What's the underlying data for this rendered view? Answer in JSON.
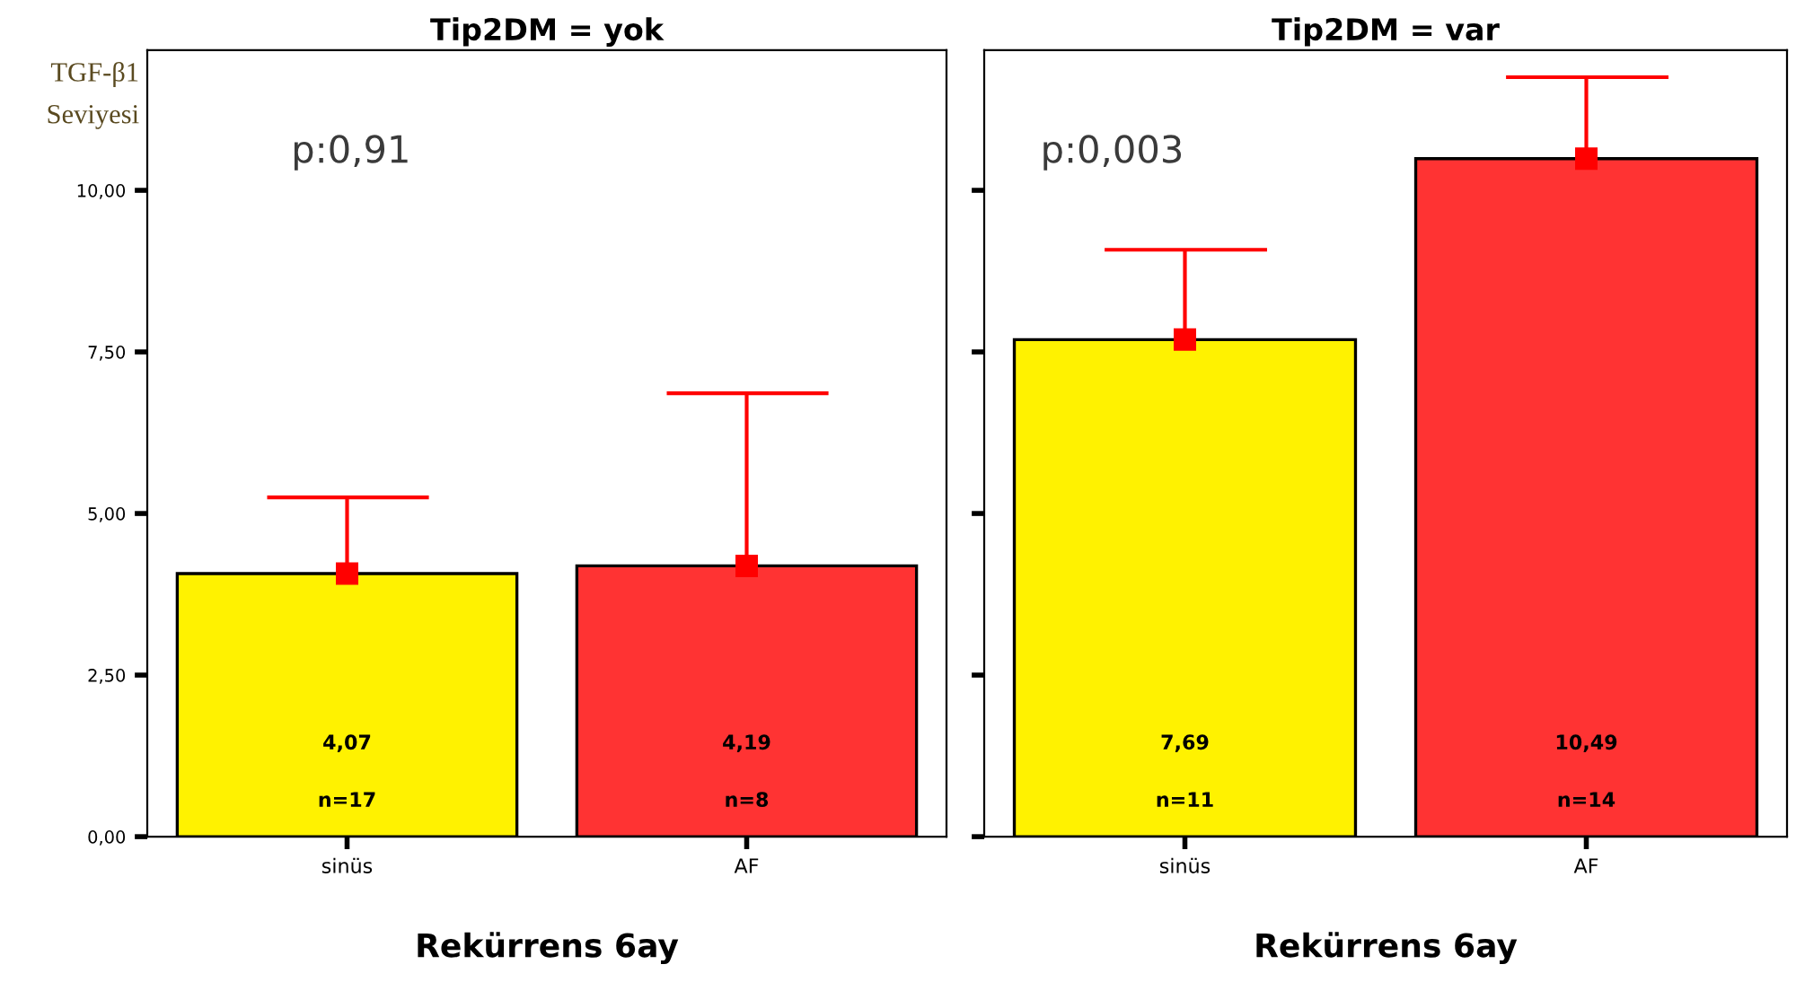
{
  "chart_data": [
    {
      "type": "bar",
      "title": "Tip2DM = yok",
      "xlabel": "Rekürrens 6ay",
      "ylabel": "TGF-β1\nSeviyesi",
      "categories": [
        "sinüs",
        "AF"
      ],
      "series": [
        {
          "values": [
            4.07,
            4.19
          ],
          "colors": [
            "#fff200",
            "#ff3333"
          ],
          "value_labels": [
            "4,07",
            "4,19"
          ]
        },
        {
          "type": "scatter",
          "x": [
            "sinüs",
            "AF"
          ],
          "values": [
            4.07,
            4.19
          ],
          "color": "#ff0000",
          "marker": "square",
          "errors": [
            [
              4.07,
              5.25
            ],
            [
              4.19,
              6.86
            ]
          ]
        }
      ],
      "ylim": [
        0,
        12.17
      ],
      "yticks": [
        {
          "value": 0,
          "label": "0,00"
        },
        {
          "value": 2.5,
          "label": "2,50"
        },
        {
          "value": 5,
          "label": "5,00"
        },
        {
          "value": 7.5,
          "label": "7,50"
        },
        {
          "value": 10,
          "label": "10,00"
        }
      ],
      "annotations": [
        "p:0,91",
        "n=17",
        "n=8"
      ]
    },
    {
      "type": "bar",
      "title": "Tip2DM = var",
      "xlabel": "Rekürrens 6ay",
      "categories": [
        "sinüs",
        "AF"
      ],
      "series": [
        {
          "values": [
            7.69,
            10.49
          ],
          "colors": [
            "#fff200",
            "#ff3333"
          ],
          "value_labels": [
            "7,69",
            "10,49"
          ]
        },
        {
          "type": "scatter",
          "x": [
            "sinüs",
            "AF"
          ],
          "values": [
            7.69,
            10.49
          ],
          "color": "#ff0000",
          "marker": "square",
          "errors": [
            [
              7.69,
              9.08
            ],
            [
              10.49,
              11.75
            ]
          ]
        }
      ],
      "ylim": [
        0,
        12.17
      ],
      "yticks": [
        0,
        2.5,
        5,
        7.5,
        10
      ],
      "tick_labels": "x",
      "annotations": [
        "p:0,003",
        "n=11",
        "n=14"
      ]
    }
  ]
}
